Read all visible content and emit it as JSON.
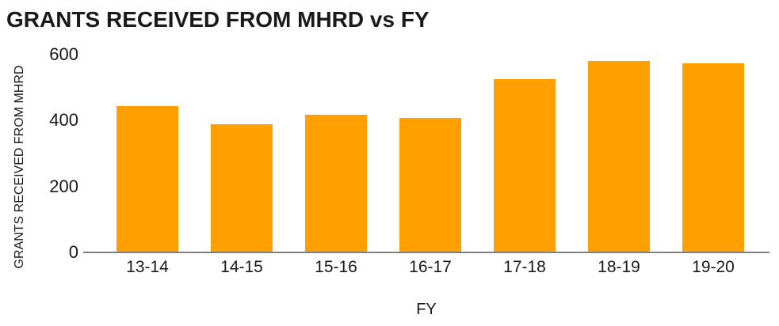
{
  "title": "GRANTS RECEIVED FROM MHRD vs FY",
  "colors": {
    "bar": "#FFA000",
    "axis_line": "#808080",
    "text": "#1A1A1A",
    "background": "#FFFFFF"
  },
  "chart_data": {
    "type": "bar",
    "title": "GRANTS RECEIVED FROM MHRD vs FY",
    "xlabel": "FY",
    "ylabel": "GRANTS RECEIVED FROM MHRD",
    "categories": [
      "13-14",
      "14-15",
      "15-16",
      "16-17",
      "17-18",
      "18-19",
      "19-20"
    ],
    "values": [
      445,
      390,
      418,
      408,
      525,
      580,
      575
    ],
    "ylim": [
      0,
      600
    ],
    "yticks": [
      0,
      200,
      400,
      600
    ],
    "grid": false,
    "legend": "none",
    "bar_color": "#FFA000"
  }
}
